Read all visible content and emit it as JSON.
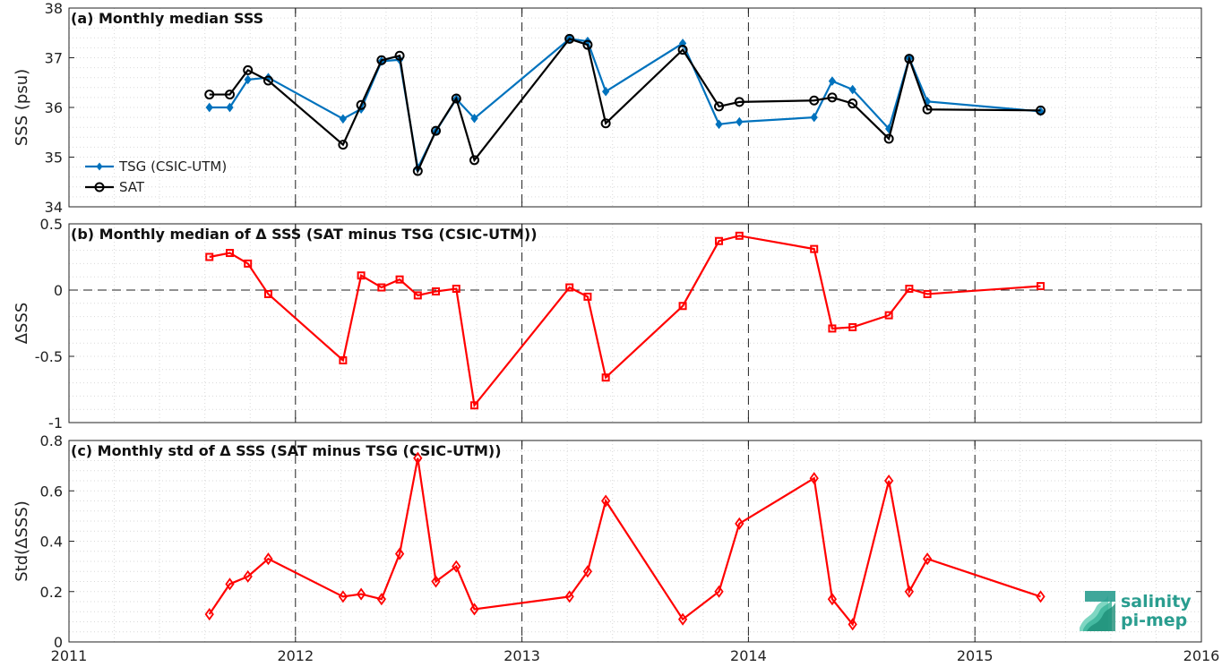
{
  "chart_data": [
    {
      "type": "line",
      "title": "(a) Monthly median SSS",
      "ylabel": "SSS (psu)",
      "xlabel": "",
      "xlim": [
        2011,
        2016
      ],
      "ylim": [
        34,
        38
      ],
      "yticks": [
        34,
        35,
        36,
        37,
        38
      ],
      "grid": "dotted minor + dashed year lines",
      "legend": "bottom-left",
      "series": [
        {
          "name": "TSG (CSIC-UTM)",
          "color": "#0072BD",
          "marker": "star",
          "x": [
            2011.62,
            2011.71,
            2011.79,
            2011.88,
            2012.21,
            2012.29,
            2012.38,
            2012.46,
            2012.54,
            2012.62,
            2012.71,
            2012.79,
            2013.21,
            2013.29,
            2013.37,
            2013.71,
            2013.87,
            2013.96,
            2014.29,
            2014.37,
            2014.46,
            2014.62,
            2014.71,
            2014.79,
            2015.29
          ],
          "y": [
            36.0,
            36.0,
            36.56,
            36.6,
            35.77,
            35.97,
            36.93,
            36.96,
            34.78,
            35.52,
            36.17,
            35.78,
            37.38,
            37.33,
            36.32,
            37.29,
            35.66,
            35.71,
            35.8,
            36.53,
            36.36,
            35.57,
            36.99,
            36.12,
            35.92
          ]
        },
        {
          "name": "SAT",
          "color": "#000000",
          "marker": "circle",
          "x": [
            2011.62,
            2011.71,
            2011.79,
            2011.88,
            2012.21,
            2012.29,
            2012.38,
            2012.46,
            2012.54,
            2012.62,
            2012.71,
            2012.79,
            2013.21,
            2013.29,
            2013.37,
            2013.71,
            2013.87,
            2013.96,
            2014.29,
            2014.37,
            2014.46,
            2014.62,
            2014.71,
            2014.79,
            2015.29
          ],
          "y": [
            36.26,
            36.26,
            36.75,
            36.54,
            35.25,
            36.05,
            36.95,
            37.04,
            34.72,
            35.53,
            36.18,
            34.94,
            37.38,
            37.26,
            35.68,
            37.16,
            36.02,
            36.11,
            36.14,
            36.2,
            36.08,
            35.37,
            36.98,
            35.96,
            35.94
          ]
        }
      ]
    },
    {
      "type": "line",
      "title": "(b) Monthly median of Δ SSS (SAT minus TSG (CSIC-UTM))",
      "ylabel": "ΔSSS",
      "xlabel": "",
      "xlim": [
        2011,
        2016
      ],
      "ylim": [
        -1,
        0.5
      ],
      "yticks": [
        -1,
        -0.5,
        0,
        0.5
      ],
      "grid": "dotted minor + dashed year lines + dashed zero line",
      "series": [
        {
          "color": "#FF0000",
          "marker": "square",
          "x": [
            2011.62,
            2011.71,
            2011.79,
            2011.88,
            2012.21,
            2012.29,
            2012.38,
            2012.46,
            2012.54,
            2012.62,
            2012.71,
            2012.79,
            2013.21,
            2013.29,
            2013.37,
            2013.71,
            2013.87,
            2013.96,
            2014.29,
            2014.37,
            2014.46,
            2014.62,
            2014.71,
            2014.79,
            2015.29
          ],
          "y": [
            0.25,
            0.28,
            0.2,
            -0.03,
            -0.53,
            0.11,
            0.02,
            0.08,
            -0.04,
            -0.01,
            0.01,
            -0.87,
            0.02,
            -0.05,
            -0.66,
            -0.12,
            0.37,
            0.41,
            0.31,
            -0.29,
            -0.28,
            -0.19,
            0.01,
            -0.03,
            0.03
          ]
        }
      ]
    },
    {
      "type": "line",
      "title": "(c) Monthly std of Δ SSS (SAT minus TSG (CSIC-UTM))",
      "ylabel": "Std(ΔSSS)",
      "xlabel": "",
      "xlim": [
        2011,
        2016
      ],
      "ylim": [
        0,
        0.8
      ],
      "yticks": [
        0,
        0.2,
        0.4,
        0.6,
        0.8
      ],
      "xticks": [
        "2011",
        "2012",
        "2013",
        "2014",
        "2015",
        "2016"
      ],
      "grid": "dotted minor + dashed year lines",
      "series": [
        {
          "color": "#FF0000",
          "marker": "diamond",
          "x": [
            2011.62,
            2011.71,
            2011.79,
            2011.88,
            2012.21,
            2012.29,
            2012.38,
            2012.46,
            2012.54,
            2012.62,
            2012.71,
            2012.79,
            2013.21,
            2013.29,
            2013.37,
            2013.71,
            2013.87,
            2013.96,
            2014.29,
            2014.37,
            2014.46,
            2014.62,
            2014.71,
            2014.79,
            2015.29
          ],
          "y": [
            0.11,
            0.23,
            0.26,
            0.33,
            0.18,
            0.19,
            0.17,
            0.35,
            0.73,
            0.24,
            0.3,
            0.13,
            0.18,
            0.28,
            0.56,
            0.09,
            0.2,
            0.47,
            0.65,
            0.17,
            0.07,
            0.64,
            0.2,
            0.33,
            0.18
          ]
        }
      ]
    }
  ],
  "xticks": [
    "2011",
    "2012",
    "2013",
    "2014",
    "2015",
    "2016"
  ],
  "logo": {
    "line1": "salinity",
    "line2": "pi-mep",
    "color": "#2a9d8f"
  }
}
